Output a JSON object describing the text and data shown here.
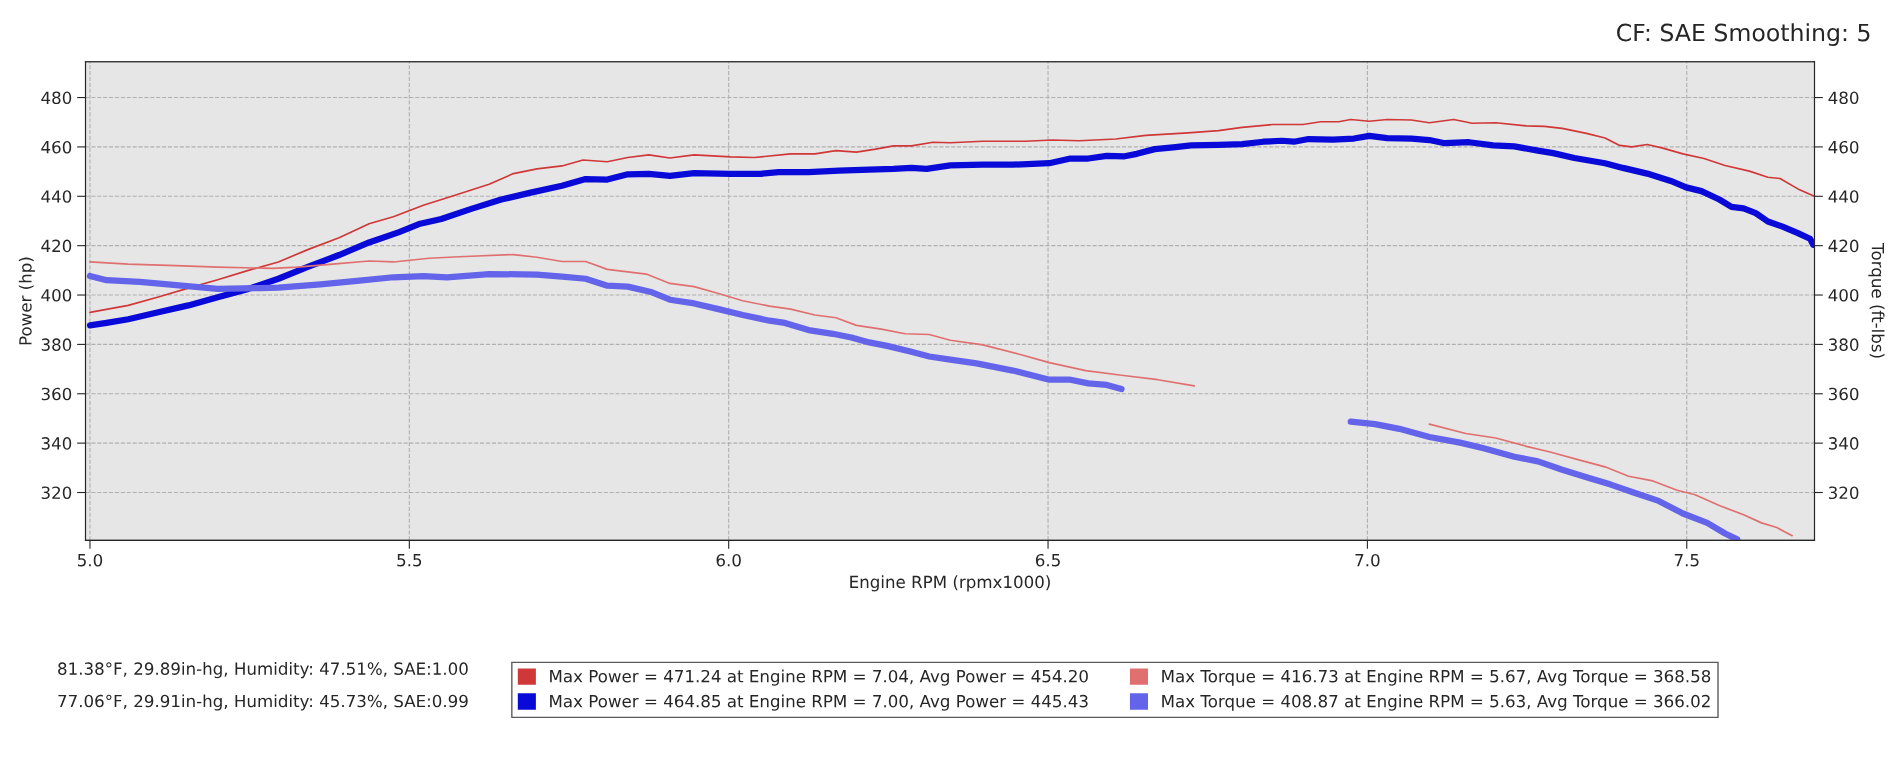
{
  "chart_data": {
    "type": "line",
    "xlabel": "Engine RPM (rpmx1000)",
    "ylabel": "Power (hp)",
    "y2label": "Torque (ft-lbs)",
    "annotations": [
      "CF: SAE Smoothing: 5",
      "81.38°F, 29.89in-hg, Humidity: 47.51%, SAE:1.00",
      "77.06°F, 29.91in-hg, Humidity: 45.73%, SAE:0.99"
    ],
    "xlim": [
      4.993,
      7.7
    ],
    "ylim": [
      300.6,
      494.5
    ],
    "y2lim": [
      300.6,
      494.5
    ],
    "xticks": [
      {
        "value": 5.0,
        "label": "5.0"
      },
      {
        "value": 5.5,
        "label": "5.5"
      },
      {
        "value": 6.0,
        "label": "6.0"
      },
      {
        "value": 6.5,
        "label": "6.5"
      },
      {
        "value": 7.0,
        "label": "7.0"
      },
      {
        "value": 7.5,
        "label": "7.5"
      }
    ],
    "yticks": [
      320,
      340,
      360,
      380,
      400,
      420,
      440,
      460,
      480
    ],
    "y2ticks": [
      320,
      340,
      360,
      380,
      400,
      420,
      440,
      460,
      480
    ],
    "grid": true,
    "legend": "bottom",
    "line_style": "solid",
    "marker": "none",
    "series": [
      {
        "name": "Max Power = 471.24 at Engine RPM = 7.04, Avg Power = 454.20",
        "color": "#d03838",
        "x": [
          5.0,
          5.06,
          5.107,
          5.154,
          5.2,
          5.248,
          5.295,
          5.342,
          5.39,
          5.437,
          5.475,
          5.522,
          5.569,
          5.625,
          5.663,
          5.7,
          5.739,
          5.772,
          5.81,
          5.842,
          5.875,
          5.908,
          5.946,
          6.003,
          6.04,
          6.097,
          6.135,
          6.168,
          6.2,
          6.23,
          6.258,
          6.286,
          6.32,
          6.347,
          6.398,
          6.464,
          6.507,
          6.549,
          6.606,
          6.653,
          6.719,
          6.767,
          6.804,
          6.852,
          6.899,
          6.927,
          6.955,
          6.974,
          7.003,
          7.031,
          7.069,
          7.097,
          7.135,
          7.164,
          7.201,
          7.249,
          7.277,
          7.305,
          7.343,
          7.372,
          7.395,
          7.414,
          7.438,
          7.461,
          7.494,
          7.527,
          7.56,
          7.598,
          7.627,
          7.646,
          7.674,
          7.698
        ],
        "values": [
          393.0,
          395.8,
          399.2,
          402.8,
          406.2,
          410.0,
          413.4,
          418.5,
          423.2,
          428.9,
          431.7,
          436.4,
          440.2,
          444.9,
          449.2,
          451.1,
          452.3,
          454.7,
          454.0,
          455.7,
          456.8,
          455.5,
          456.8,
          456.0,
          455.7,
          457.2,
          457.2,
          458.5,
          457.9,
          459.1,
          460.4,
          460.4,
          461.9,
          461.7,
          462.3,
          462.3,
          462.8,
          462.5,
          463.2,
          464.7,
          465.7,
          466.6,
          467.9,
          469.1,
          469.1,
          470.2,
          470.2,
          471.1,
          470.4,
          471.1,
          470.9,
          469.8,
          471.1,
          469.6,
          469.8,
          468.5,
          468.3,
          467.5,
          465.5,
          463.6,
          460.6,
          460.0,
          461.0,
          459.6,
          457.2,
          455.3,
          452.5,
          450.2,
          447.7,
          447.2,
          443.0,
          440.2
        ]
      },
      {
        "name": "Max Power = 464.85 at Engine RPM = 7.00, Avg Power = 445.43",
        "color": "#0a0ad8",
        "x": [
          5.0,
          5.026,
          5.06,
          5.107,
          5.154,
          5.2,
          5.248,
          5.295,
          5.342,
          5.39,
          5.437,
          5.484,
          5.517,
          5.55,
          5.597,
          5.644,
          5.69,
          5.739,
          5.776,
          5.81,
          5.842,
          5.875,
          5.908,
          5.946,
          6.003,
          6.05,
          6.078,
          6.125,
          6.173,
          6.22,
          6.258,
          6.286,
          6.31,
          6.347,
          6.398,
          6.445,
          6.502,
          6.535,
          6.563,
          6.592,
          6.62,
          6.639,
          6.667,
          6.696,
          6.724,
          6.767,
          6.804,
          6.837,
          6.866,
          6.885,
          6.908,
          6.946,
          6.979,
          7.003,
          7.031,
          7.069,
          7.097,
          7.121,
          7.159,
          7.197,
          7.23,
          7.267,
          7.291,
          7.324,
          7.372,
          7.4,
          7.438,
          7.475,
          7.499,
          7.523,
          7.551,
          7.57,
          7.589,
          7.608,
          7.627,
          7.65,
          7.674,
          7.693,
          7.698
        ],
        "values": [
          387.7,
          388.7,
          390.2,
          393.0,
          395.8,
          399.1,
          402.5,
          406.6,
          411.5,
          416.2,
          421.3,
          425.5,
          428.9,
          430.8,
          434.9,
          438.7,
          441.5,
          444.3,
          447.0,
          446.8,
          448.9,
          449.1,
          448.3,
          449.4,
          449.1,
          449.1,
          449.8,
          449.8,
          450.4,
          450.8,
          451.1,
          451.5,
          451.1,
          452.5,
          452.8,
          452.8,
          453.4,
          455.3,
          455.3,
          456.4,
          456.2,
          457.2,
          459.1,
          459.8,
          460.6,
          460.8,
          461.1,
          462.1,
          462.5,
          462.1,
          463.2,
          463.0,
          463.4,
          464.5,
          463.6,
          463.4,
          462.8,
          461.5,
          461.9,
          460.6,
          460.2,
          458.5,
          457.5,
          455.5,
          453.4,
          451.5,
          449.2,
          446.2,
          443.6,
          442.1,
          438.7,
          435.7,
          435.1,
          433.2,
          429.8,
          427.7,
          425.1,
          422.8,
          420.4
        ]
      },
      {
        "name": "Max Torque = 416.73 at Engine RPM = 5.67, Avg Torque = 368.58",
        "color": "#e07070",
        "axis": "y2",
        "x": [
          5.0,
          5.06,
          5.135,
          5.2,
          5.286,
          5.324,
          5.38,
          5.437,
          5.475,
          5.531,
          5.578,
          5.663,
          5.7,
          5.739,
          5.776,
          5.81,
          5.871,
          5.908,
          5.946,
          5.984,
          6.022,
          6.064,
          6.097,
          6.135,
          6.168,
          6.2,
          6.239,
          6.276,
          6.314,
          6.347,
          6.398,
          6.455,
          6.502,
          6.559,
          6.615,
          6.672,
          6.729,
          6.9,
          7.097,
          7.154,
          7.201,
          7.249,
          7.286,
          7.334,
          7.372,
          7.409,
          7.447,
          7.485,
          7.513,
          7.551,
          7.589,
          7.617,
          7.641,
          7.665
        ],
        "values": [
          413.4,
          412.5,
          411.9,
          411.3,
          410.8,
          411.3,
          412.5,
          413.8,
          413.4,
          414.9,
          415.5,
          416.4,
          415.3,
          413.6,
          413.6,
          410.4,
          408.5,
          404.7,
          403.4,
          400.6,
          397.7,
          395.5,
          394.3,
          391.9,
          390.8,
          387.7,
          386.2,
          384.3,
          384.0,
          381.7,
          379.8,
          376.0,
          372.6,
          369.4,
          367.5,
          365.7,
          363.2,
          null,
          347.7,
          343.9,
          342.1,
          338.7,
          336.4,
          333.0,
          330.4,
          326.6,
          324.7,
          320.9,
          319.1,
          314.7,
          311.0,
          307.7,
          305.8,
          302.5
        ]
      },
      {
        "name": "Max Torque = 408.87 at Engine RPM = 5.63, Avg Torque = 366.02",
        "color": "#6464ea",
        "axis": "y2",
        "x": [
          5.0,
          5.026,
          5.078,
          5.135,
          5.2,
          5.267,
          5.295,
          5.361,
          5.418,
          5.475,
          5.522,
          5.559,
          5.625,
          5.7,
          5.739,
          5.776,
          5.81,
          5.842,
          5.88,
          5.908,
          5.946,
          5.984,
          6.022,
          6.064,
          6.088,
          6.125,
          6.163,
          6.192,
          6.22,
          6.248,
          6.286,
          6.314,
          6.347,
          6.388,
          6.445,
          6.502,
          6.535,
          6.563,
          6.592,
          6.615,
          6.8,
          6.974,
          7.012,
          7.05,
          7.097,
          7.145,
          7.182,
          7.23,
          7.267,
          7.305,
          7.343,
          7.381,
          7.419,
          7.456,
          7.494,
          7.532,
          7.56,
          7.579
        ],
        "values": [
          407.7,
          406.0,
          405.3,
          404.0,
          402.5,
          402.8,
          403.0,
          404.3,
          405.7,
          407.2,
          407.7,
          407.2,
          408.5,
          408.3,
          407.5,
          406.6,
          403.8,
          403.4,
          401.1,
          398.1,
          396.6,
          394.3,
          391.9,
          389.6,
          388.7,
          385.8,
          384.3,
          382.8,
          380.8,
          379.4,
          377.0,
          375.1,
          373.8,
          372.3,
          369.4,
          365.7,
          365.7,
          364.2,
          363.6,
          361.9,
          null,
          348.7,
          347.7,
          345.8,
          342.5,
          340.2,
          337.9,
          334.5,
          332.6,
          329.2,
          326.2,
          323.2,
          319.8,
          316.6,
          311.5,
          307.7,
          303.4,
          301.0
        ]
      }
    ]
  }
}
